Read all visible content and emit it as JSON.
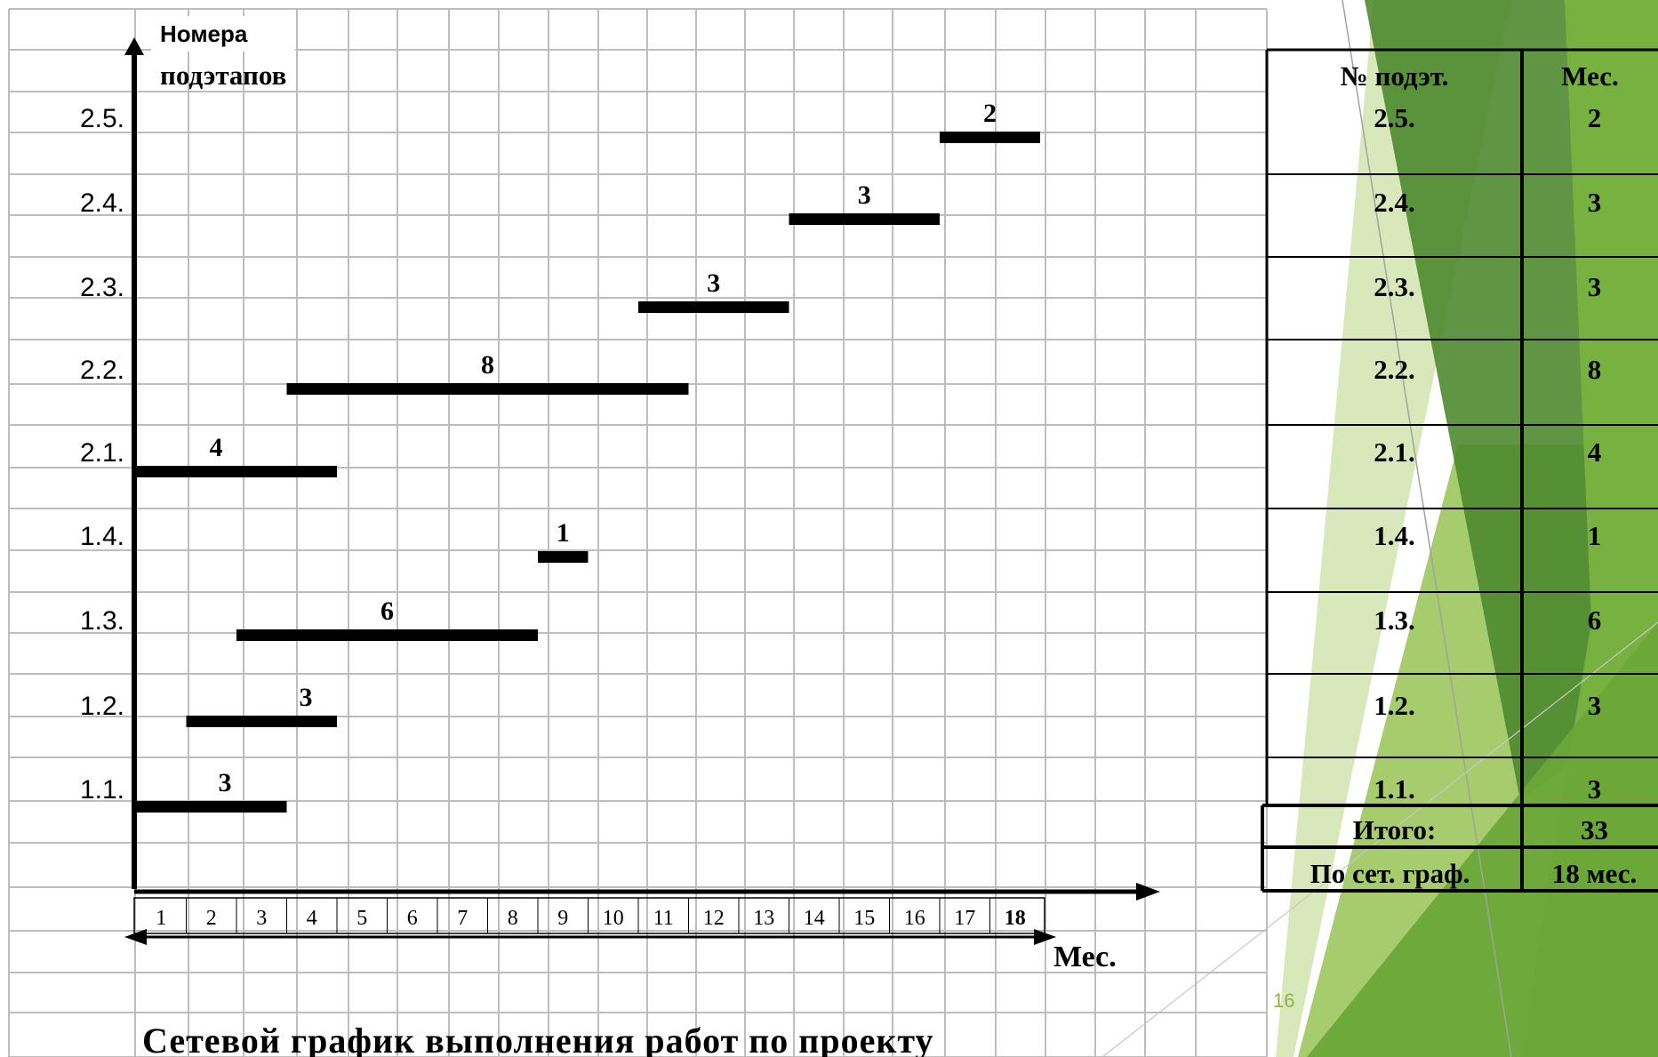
{
  "chart_data": {
    "type": "gantt",
    "title": "Сетевой график выполнения работ по проекту",
    "ylabel_line1": "Номера",
    "ylabel_line2": "подэтапов",
    "xlabel": "Мес.",
    "x_ticks": [
      "1",
      "2",
      "3",
      "4",
      "5",
      "6",
      "7",
      "8",
      "9",
      "10",
      "11",
      "12",
      "13",
      "14",
      "15",
      "16",
      "17",
      "18"
    ],
    "tasks": [
      {
        "label": "1.1.",
        "start": 0,
        "duration": 3,
        "value_label": "3"
      },
      {
        "label": "1.2.",
        "start": 1,
        "duration": 3,
        "value_label": "3"
      },
      {
        "label": "1.3.",
        "start": 2,
        "duration": 6,
        "value_label": "6"
      },
      {
        "label": "1.4.",
        "start": 8,
        "duration": 1,
        "value_label": "1"
      },
      {
        "label": "2.1.",
        "start": 0,
        "duration": 4,
        "value_label": "4"
      },
      {
        "label": "2.2.",
        "start": 3,
        "duration": 8,
        "value_label": "8"
      },
      {
        "label": "2.3.",
        "start": 10,
        "duration": 3,
        "value_label": "3"
      },
      {
        "label": "2.4.",
        "start": 13,
        "duration": 3,
        "value_label": "3"
      },
      {
        "label": "2.5.",
        "start": 16,
        "duration": 2,
        "value_label": "2"
      }
    ]
  },
  "table": {
    "headers": [
      "№ подэт.",
      "Мес."
    ],
    "rows": [
      [
        "2.5.",
        "2"
      ],
      [
        "2.4.",
        "3"
      ],
      [
        "2.3.",
        "3"
      ],
      [
        "2.2.",
        "8"
      ],
      [
        "2.1.",
        "4"
      ],
      [
        "1.4.",
        "1"
      ],
      [
        "1.3.",
        "6"
      ],
      [
        "1.2.",
        "3"
      ],
      [
        "1.1.",
        "3"
      ]
    ],
    "total_label": "Итого:",
    "total_value": "33",
    "network_label": "По сет. граф.",
    "network_value": "18 мес."
  },
  "slide_number": "16",
  "colors": {
    "bar": "#000000",
    "grid": "#bdbdbd",
    "green_dark": "#4e8a2f",
    "green_mid": "#77b140",
    "green_light": "#a6cc6e",
    "green_pale": "#d4e6b3",
    "slide_number": "#8db344"
  }
}
